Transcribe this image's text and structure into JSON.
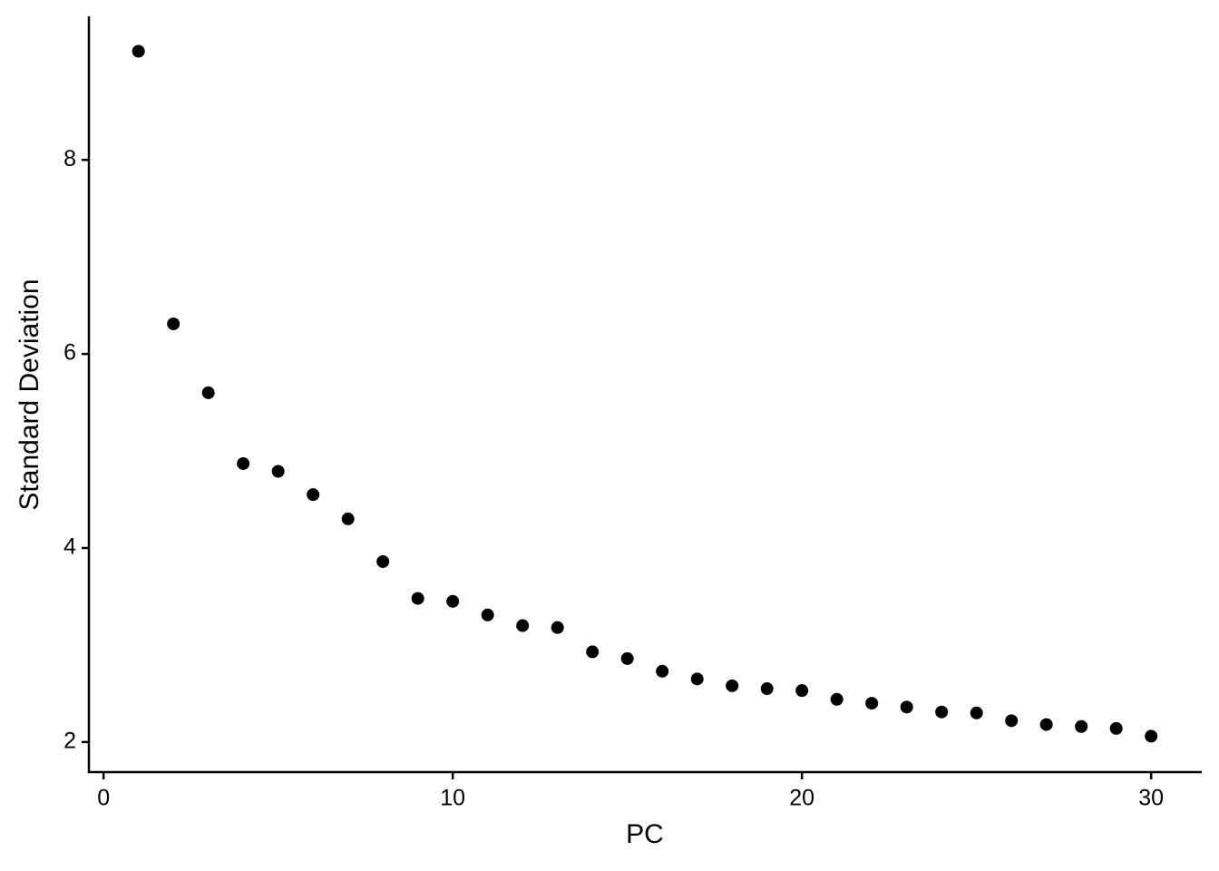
{
  "chart_data": {
    "type": "scatter",
    "x_label": "PC",
    "y_label": "Standard Deviation",
    "x": [
      1,
      2,
      3,
      4,
      5,
      6,
      7,
      8,
      9,
      10,
      11,
      12,
      13,
      14,
      15,
      16,
      17,
      18,
      19,
      20,
      21,
      22,
      23,
      24,
      25,
      26,
      27,
      28,
      29,
      30
    ],
    "series": [
      {
        "color": "#000000",
        "values": [
          9.12,
          6.31,
          5.6,
          4.87,
          4.79,
          4.55,
          4.3,
          3.86,
          3.48,
          3.45,
          3.31,
          3.2,
          3.18,
          2.93,
          2.86,
          2.73,
          2.65,
          2.58,
          2.55,
          2.53,
          2.44,
          2.4,
          2.36,
          2.31,
          2.3,
          2.22,
          2.18,
          2.16,
          2.14,
          2.06
        ]
      }
    ],
    "xlim": [
      -0.42,
      31.45
    ],
    "xticks": [
      0,
      10,
      20,
      30
    ],
    "ylim": [
      1.69,
      9.48
    ],
    "yticks": [
      2,
      4,
      6,
      8
    ],
    "grid": false
  }
}
